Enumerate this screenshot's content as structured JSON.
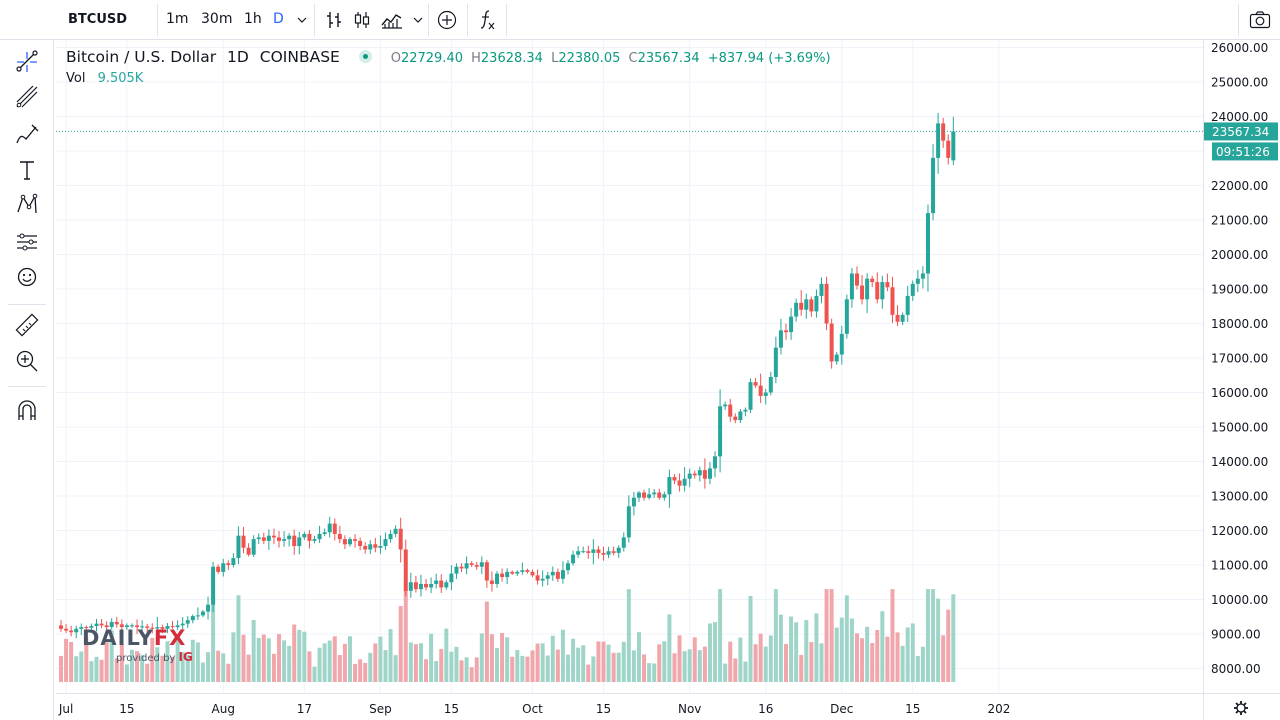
{
  "toolbar": {
    "symbol": "BTCUSD",
    "intervals": [
      "1m",
      "30m",
      "1h",
      "D"
    ],
    "active_interval": "D",
    "icons": [
      "chevron-down-icon",
      "bar-style-icon",
      "candle-style-icon",
      "compare-icon",
      "chevron-down-icon",
      "add-icon",
      "indicators-icon",
      "camera-icon"
    ]
  },
  "left_tools": [
    "crosshair-icon",
    "trendline-icon",
    "fib-icon",
    "brush-icon",
    "text-icon",
    "pattern-icon",
    "prediction-icon",
    "emoji-icon",
    "ruler-icon",
    "zoom-icon",
    "magnet-icon"
  ],
  "legend": {
    "title": "Bitcoin / U.S. Dollar",
    "interval": "1D",
    "exchange": "COINBASE",
    "open_label": "O",
    "open": "22729.40",
    "high_label": "H",
    "high": "23628.34",
    "low_label": "L",
    "low": "22380.05",
    "close_label": "C",
    "close": "23567.34",
    "change": "+837.94 (+3.69%)",
    "vol_label": "Vol",
    "vol_value": "9.505K"
  },
  "price_tag": {
    "price": "23567.34",
    "countdown": "09:51:26"
  },
  "logo": {
    "brand": "DAILYFX",
    "brand_a": "DAILY",
    "brand_b": "FX",
    "provided_by": "provided by",
    "provider": "IG"
  },
  "colors": {
    "up": "#26a69a",
    "down": "#ef5350",
    "up_vol": "#9fd5c9",
    "down_vol": "#f0a6ab",
    "grid": "#f0f3fa",
    "accent": "#2962ff"
  },
  "chart_data": {
    "type": "candlestick",
    "title": "Bitcoin / U.S. Dollar",
    "ylim": [
      7600,
      26200
    ],
    "y_ticks": [
      "26000.00",
      "25000.00",
      "24000.00",
      "23000.00",
      "22000.00",
      "21000.00",
      "20000.00",
      "19000.00",
      "18000.00",
      "17000.00",
      "16000.00",
      "15000.00",
      "14000.00",
      "13000.00",
      "12000.00",
      "11000.00",
      "10000.00",
      "9000.00",
      "8000.00"
    ],
    "x_ticks": [
      {
        "label": "Jul",
        "index": 1
      },
      {
        "label": "15",
        "index": 13
      },
      {
        "label": "Aug",
        "index": 32
      },
      {
        "label": "17",
        "index": 48
      },
      {
        "label": "Sep",
        "index": 63
      },
      {
        "label": "15",
        "index": 77
      },
      {
        "label": "Oct",
        "index": 93
      },
      {
        "label": "15",
        "index": 107
      },
      {
        "label": "Nov",
        "index": 124
      },
      {
        "label": "16",
        "index": 139
      },
      {
        "label": "Dec",
        "index": 154
      },
      {
        "label": "15",
        "index": 168
      },
      {
        "label": "202",
        "index": 185
      }
    ],
    "closes": [
      9150,
      9100,
      9050,
      9150,
      9200,
      9180,
      9230,
      9300,
      9250,
      9200,
      9350,
      9280,
      9200,
      9250,
      9250,
      9200,
      9220,
      9180,
      9160,
      9200,
      9150,
      9230,
      9200,
      9250,
      9300,
      9400,
      9520,
      9540,
      9650,
      9850,
      10950,
      10800,
      11050,
      11000,
      11200,
      11850,
      11500,
      11300,
      11750,
      11800,
      11700,
      11850,
      11800,
      11700,
      11750,
      11850,
      11550,
      11800,
      11900,
      11700,
      11750,
      11900,
      11950,
      12200,
      11900,
      11750,
      11600,
      11750,
      11700,
      11550,
      11450,
      11600,
      11500,
      11550,
      11750,
      11900,
      12050,
      11450,
      10250,
      10500,
      10300,
      10450,
      10350,
      10450,
      10550,
      10350,
      10500,
      10750,
      10950,
      10900,
      11050,
      11000,
      10950,
      11080,
      10550,
      10450,
      10750,
      10650,
      10800,
      10750,
      10800,
      10850,
      10800,
      10700,
      10550,
      10600,
      10700,
      10800,
      10600,
      10850,
      11050,
      11300,
      11400,
      11400,
      11350,
      11450,
      11350,
      11300,
      11400,
      11350,
      11500,
      11800,
      12700,
      12950,
      13100,
      12950,
      13050,
      13100,
      12950,
      13050,
      13550,
      13450,
      13300,
      13500,
      13650,
      13600,
      13750,
      13500,
      13800,
      14150,
      15600,
      15650,
      15300,
      15200,
      15450,
      15500,
      16300,
      16200,
      15900,
      16000,
      16450,
      17300,
      17800,
      17750,
      18200,
      18600,
      18400,
      18700,
      18350,
      18800,
      19150,
      18000,
      16900,
      17100,
      17700,
      18700,
      19450,
      19100,
      18700,
      19300,
      19200,
      18700,
      19200,
      19050,
      18250,
      18050,
      18250,
      18800,
      19150,
      19300,
      19450,
      21200,
      22800,
      23800,
      23300,
      22800,
      23567
    ],
    "opens_first": 9250,
    "vol_base": 7610,
    "vol_max_value": 11950
  }
}
